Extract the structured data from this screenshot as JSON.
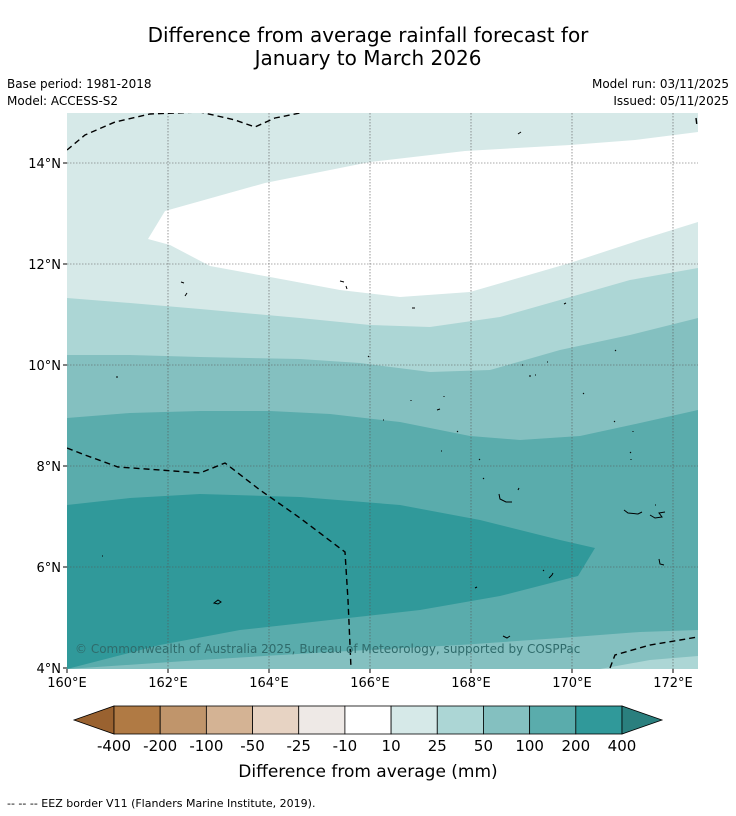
{
  "header": {
    "title_line1": "Difference from average rainfall forecast for",
    "title_line2": "January to March 2026",
    "base_period": "Base period: 1981-2018",
    "model": "Model: ACCESS-S2",
    "model_run": "Model run: 03/11/2025",
    "issued": "Issued: 05/11/2025"
  },
  "map": {
    "x_ticks": [
      "160°E",
      "162°E",
      "164°E",
      "166°E",
      "168°E",
      "170°E",
      "172°E"
    ],
    "y_ticks": [
      "14°N",
      "12°N",
      "10°N",
      "8°N",
      "6°N",
      "4°N"
    ],
    "copyright": "© Commonwealth of Australia 2025, Bureau of Meteorology, supported by COSPPac"
  },
  "colorbar": {
    "labels": [
      "-400",
      "-200",
      "-100",
      "-50",
      "-25",
      "-10",
      "10",
      "25",
      "50",
      "100",
      "200",
      "400"
    ],
    "colors": [
      "#9a6230",
      "#b07a44",
      "#c0956b",
      "#d4b394",
      "#e7d3c3",
      "#eee9e6",
      "#ffffff",
      "#d6e9e8",
      "#acd6d5",
      "#84c0c0",
      "#5aacac",
      "#30999a",
      "#2a7f7e"
    ],
    "title": "Difference from average (mm)"
  },
  "footnote": "--  --  -- EEZ border V11 (Flanders Marine Institute, 2019)."
}
